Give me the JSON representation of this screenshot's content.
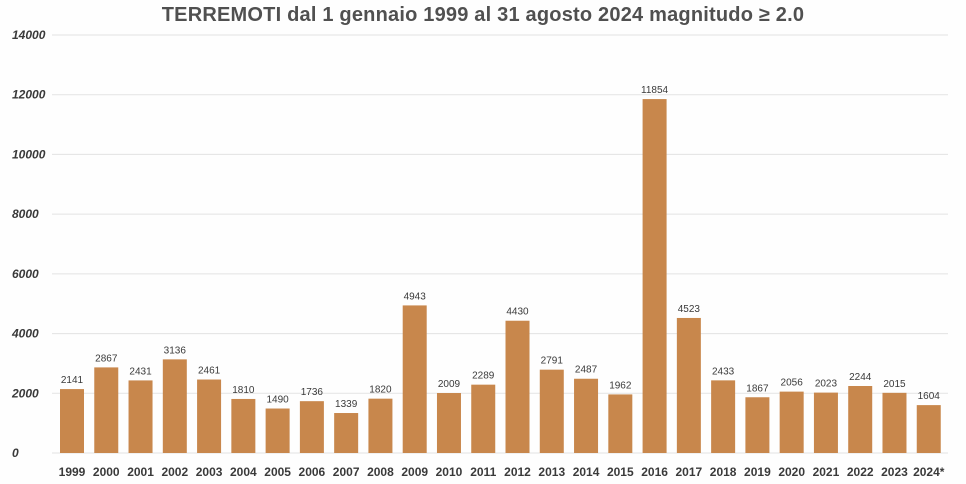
{
  "chart_data": {
    "type": "bar",
    "title": "TERREMOTI dal 1 gennaio 1999 al 31 agosto 2024 magnitudo ≥ 2.0",
    "xlabel": "",
    "ylabel": "",
    "ylim": [
      0,
      14000
    ],
    "yticks": [
      0,
      2000,
      4000,
      6000,
      8000,
      10000,
      12000,
      14000
    ],
    "grid": true,
    "bar_color": "#c8874c",
    "categories": [
      "1999",
      "2000",
      "2001",
      "2002",
      "2003",
      "2004",
      "2005",
      "2006",
      "2007",
      "2008",
      "2009",
      "2010",
      "2011",
      "2012",
      "2013",
      "2014",
      "2015",
      "2016",
      "2017",
      "2018",
      "2019",
      "2020",
      "2021",
      "2022",
      "2023",
      "2024*"
    ],
    "values": [
      2141,
      2867,
      2431,
      3136,
      2461,
      1810,
      1490,
      1736,
      1339,
      1820,
      4943,
      2009,
      2289,
      4430,
      2791,
      2487,
      1962,
      11854,
      4523,
      2433,
      1867,
      2056,
      2023,
      2244,
      2015,
      1604
    ]
  }
}
